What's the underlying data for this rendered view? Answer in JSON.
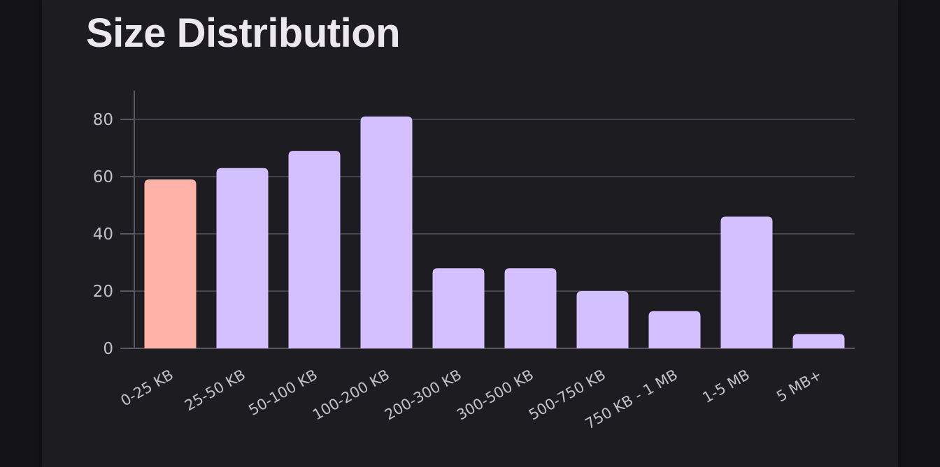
{
  "card": {
    "title": "Size Distribution"
  },
  "chart_data": {
    "type": "bar",
    "title": "Size Distribution",
    "xlabel": "",
    "ylabel": "",
    "categories": [
      "0-25 KB",
      "25-50 KB",
      "50-100 KB",
      "100-200 KB",
      "200-300 KB",
      "300-500 KB",
      "500-750 KB",
      "750 KB - 1 MB",
      "1-5 MB",
      "5 MB+"
    ],
    "values": [
      59,
      63,
      69,
      81,
      28,
      28,
      20,
      13,
      46,
      5
    ],
    "highlight_index": 0,
    "ylim": [
      0,
      90
    ],
    "yticks": [
      0,
      20,
      40,
      60,
      80
    ],
    "grid": true,
    "legend": false,
    "colors": {
      "bar": "#d4bfff",
      "highlight": "#ffb3a8",
      "grid": "#45434b",
      "axis": "#5a5860",
      "text": "#c4c0ca"
    }
  }
}
